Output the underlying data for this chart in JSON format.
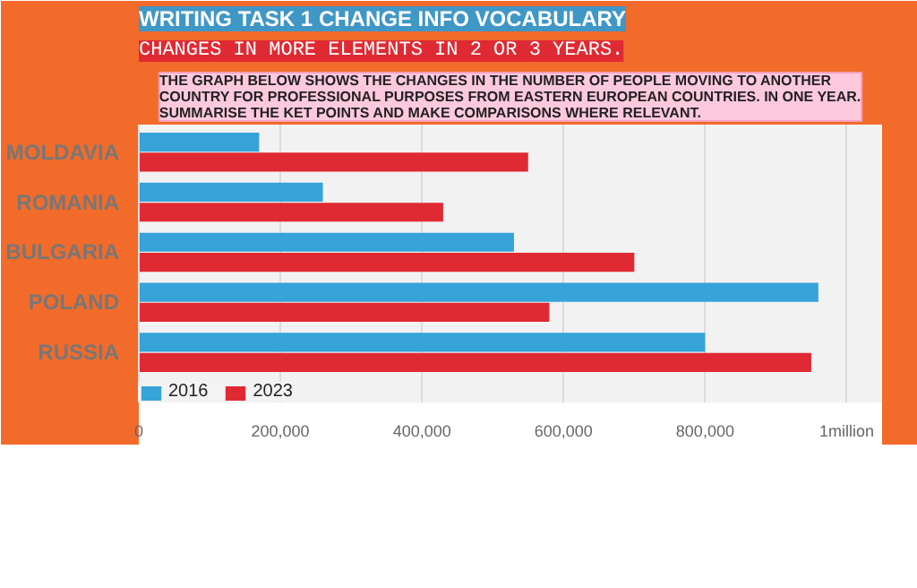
{
  "chart_data": {
    "type": "bar",
    "orientation": "horizontal",
    "title": "WRITING TASK 1 CHANGE INFO VOCABULARY",
    "subtitle": "CHANGES IN MORE ELEMENTS IN 2 OR 3 YEARS.",
    "annotations": [
      "THE GRAPH BELOW SHOWS THE CHANGES IN THE NUMBER OF PEOPLE MOVING TO ANOTHER COUNTRY FOR PROFESSIONAL PURPOSES FROM EASTERN EUROPEAN COUNTRIES. IN ONE YEAR. SUMMARISE THE KET POINTS AND MAKE COMPARISONS WHERE RELEVANT."
    ],
    "categories": [
      "MOLDAVIA",
      "ROMANIA",
      "BULGARIA",
      "POLAND",
      "RUSSIA"
    ],
    "series": [
      {
        "name": "2016",
        "color": "#36a3d9",
        "values": [
          170000,
          260000,
          530000,
          960000,
          800000
        ]
      },
      {
        "name": "2023",
        "color": "#e02a33",
        "values": [
          550000,
          430000,
          700000,
          580000,
          950000
        ]
      }
    ],
    "xlim": [
      0,
      1050000
    ],
    "xticks": [
      0,
      {
        "value": 200000,
        "label": "200,000"
      },
      {
        "value": 400000,
        "label": "400,000"
      },
      {
        "value": 600000,
        "label": "600,000"
      },
      {
        "value": 800000,
        "label": "800,000"
      },
      {
        "value": 1000000,
        "label": "1million"
      }
    ],
    "grid": "x",
    "legend": "bottom left"
  }
}
